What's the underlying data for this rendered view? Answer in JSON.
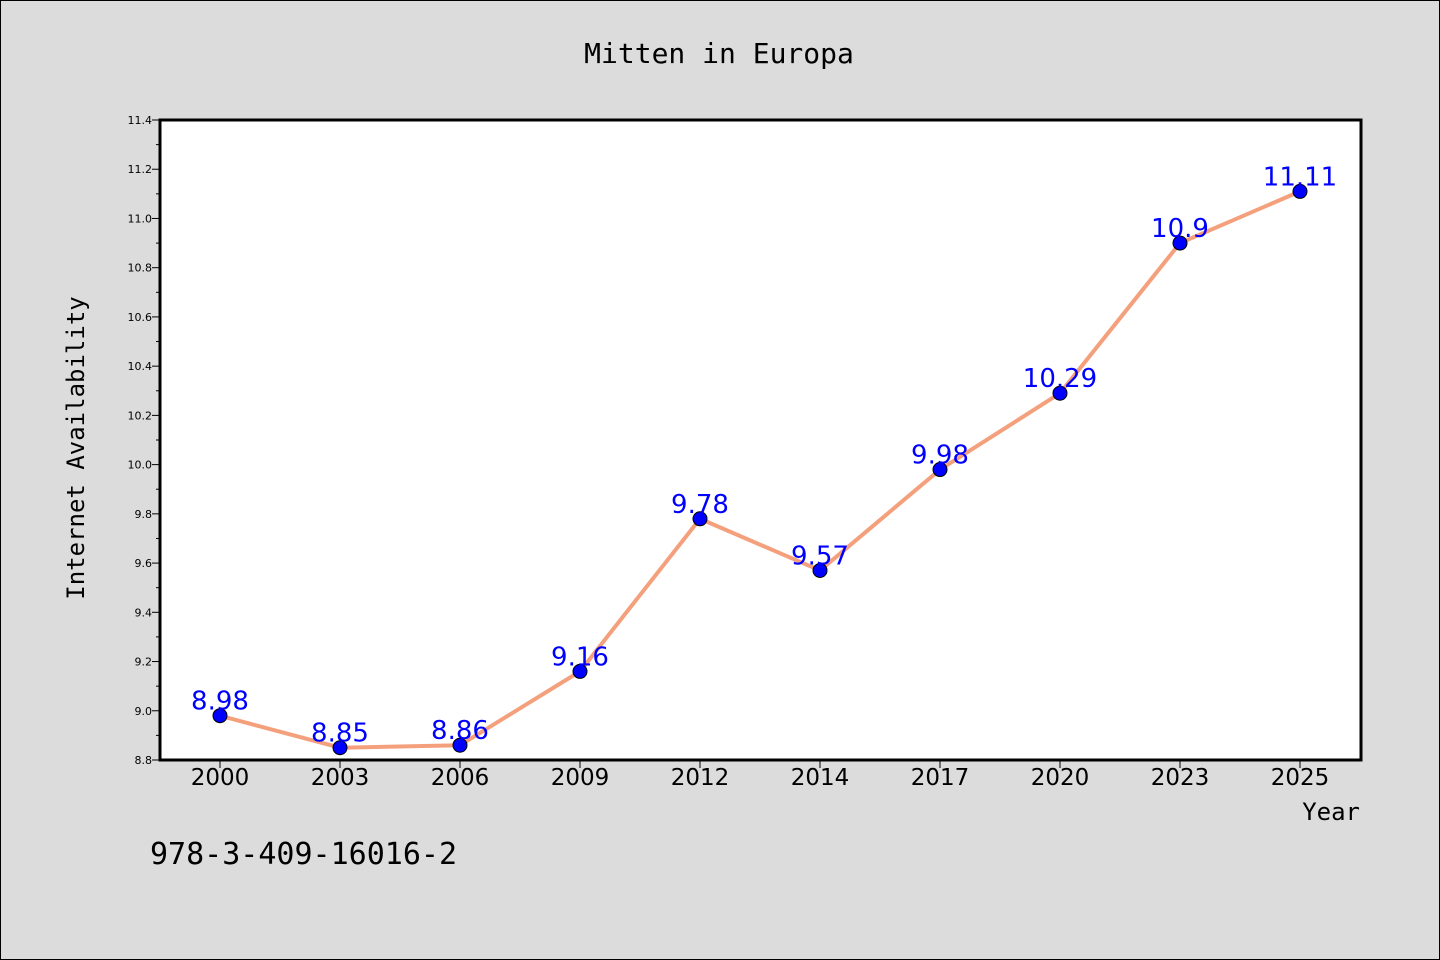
{
  "chart_data": {
    "type": "line",
    "title": "Mitten in Europa",
    "xlabel": "Year",
    "ylabel": "Internet Availability",
    "categories": [
      "2000",
      "2003",
      "2006",
      "2009",
      "2012",
      "2014",
      "2017",
      "2020",
      "2023",
      "2025"
    ],
    "series": [
      {
        "values": [
          8.98,
          8.85,
          8.86,
          9.16,
          9.78,
          9.57,
          9.98,
          10.29,
          10.9,
          11.11
        ],
        "labels": [
          "8.98",
          "8.85",
          "8.86",
          "9.16",
          "9.78",
          "9.57",
          "9.98",
          "10.29",
          "10.9",
          "11.11"
        ],
        "line_color": "#f4a07c",
        "marker_color": "#0000ff"
      }
    ],
    "ylim": [
      8.8,
      11.4
    ],
    "yticks": [
      "8.8",
      "9.0",
      "9.2",
      "9.4",
      "9.6",
      "9.8",
      "10.0",
      "10.2",
      "10.4",
      "10.6",
      "10.8",
      "11.0",
      "11.2",
      "11.4"
    ],
    "grid": false,
    "legend": "none"
  },
  "footnote": "978-3-409-16016-2",
  "colors": {
    "background": "#dcdcdc",
    "plot_background": "#ffffff"
  }
}
